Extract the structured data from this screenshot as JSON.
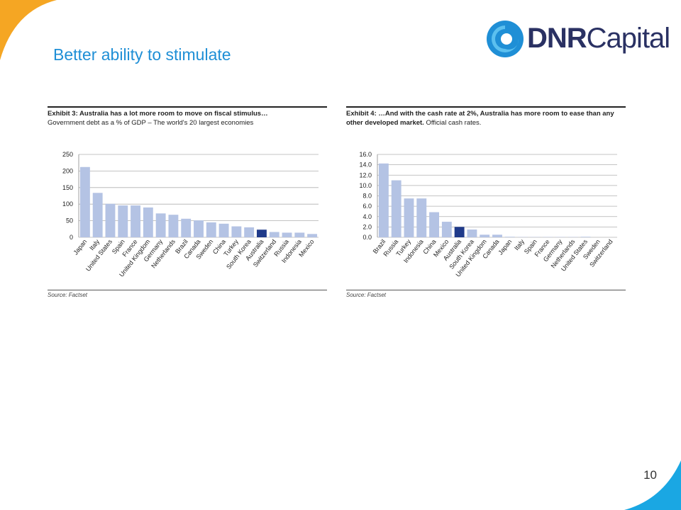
{
  "slide": {
    "title": "Better ability to stimulate",
    "page_number": "10"
  },
  "logo": {
    "part1": "DNR",
    "part2": "Capital",
    "colors": {
      "blue": "#1f8fd6",
      "navy": "#2a3163"
    }
  },
  "colors": {
    "bar": "#b4c3e4",
    "highlight": "#1f3a8a",
    "accent_orange": "#f5a623",
    "accent_blue": "#1aa7e3",
    "title": "#1f8fd6"
  },
  "chart_data": [
    {
      "type": "bar",
      "exhibit_label": "Exhibit 3: Australia has a lot more room to move on fiscal stimulus…",
      "subtitle": "Government debt as a % of GDP – The world's 20 largest economies",
      "categories": [
        "Japan",
        "Italy",
        "United States",
        "Spain",
        "France",
        "United Kingdom",
        "Germany",
        "Netherlands",
        "Brazil",
        "Canada",
        "Sweden",
        "China",
        "Turkey",
        "South Korea",
        "Australia",
        "Switzerland",
        "Russia",
        "Indonesia",
        "Mexico"
      ],
      "values": [
        212,
        134,
        101,
        96,
        96,
        90,
        72,
        68,
        56,
        51,
        45,
        41,
        33,
        30,
        23,
        16,
        14,
        14,
        10
      ],
      "highlight": "Australia",
      "yticks": [
        "0",
        "50",
        "100",
        "150",
        "200",
        "250"
      ],
      "ylim": [
        0,
        250
      ],
      "grid": true,
      "source": "Source: Factset"
    },
    {
      "type": "bar",
      "exhibit_label": "Exhibit 4: …And with the cash rate at 2%, Australia has more room to ease than any other developed market.",
      "subtitle": "Official cash rates.",
      "categories": [
        "Brazil",
        "Russia",
        "Turkey",
        "Indonesia",
        "China",
        "Mexico",
        "Australia",
        "South Korea",
        "United Kingdom",
        "Canada",
        "Japan",
        "Italy",
        "Spain",
        "France",
        "Germany",
        "Netherlands",
        "United States",
        "Sweden",
        "Switzerland"
      ],
      "values": [
        14.25,
        11.0,
        7.5,
        7.5,
        4.85,
        3.0,
        2.0,
        1.5,
        0.5,
        0.5,
        0.1,
        0.05,
        0.05,
        0.05,
        0.05,
        0.05,
        0.1,
        -0.1,
        -0.75
      ],
      "highlight": "Australia",
      "yticks": [
        "0.0",
        "2.0",
        "4.0",
        "6.0",
        "8.0",
        "10.0",
        "12.0",
        "14.0",
        "16.0"
      ],
      "ylim": [
        0,
        16
      ],
      "grid": true,
      "source": "Source: Factset"
    }
  ]
}
